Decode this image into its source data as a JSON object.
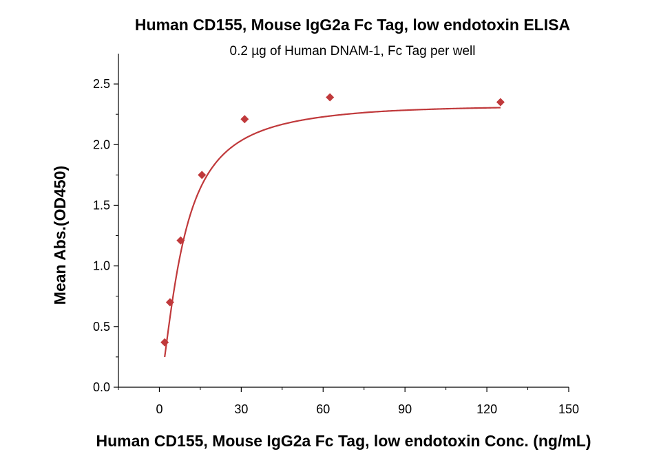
{
  "chart_data": {
    "type": "scatter",
    "title": "Human CD155, Mouse IgG2a Fc Tag, low endotoxin ELISA",
    "subtitle": "0.2 µg of Human DNAM-1, Fc Tag per well",
    "xlabel": "Human CD155, Mouse IgG2a Fc Tag, low endotoxin Conc. (ng/mL)",
    "ylabel": "Mean Abs.(OD450)",
    "xlim": [
      -15,
      150
    ],
    "ylim": [
      0,
      2.75
    ],
    "xticks": [
      0,
      30,
      60,
      90,
      120,
      150
    ],
    "yticks": [
      0.0,
      0.5,
      1.0,
      1.5,
      2.0,
      2.5
    ],
    "xtick_labels": [
      "0",
      "30",
      "60",
      "90",
      "120",
      "150"
    ],
    "ytick_labels": [
      "0.0",
      "0.5",
      "1.0",
      "1.5",
      "2.0",
      "2.5"
    ],
    "grid": false,
    "legend": "none",
    "series": [
      {
        "marker": "diamond",
        "color": "#c0393b",
        "x": [
          1.95,
          3.9,
          7.8,
          15.6,
          31.25,
          62.5,
          125
        ],
        "y": [
          0.37,
          0.7,
          1.21,
          1.75,
          2.21,
          2.39,
          2.35
        ],
        "fit_curve": true
      }
    ]
  }
}
